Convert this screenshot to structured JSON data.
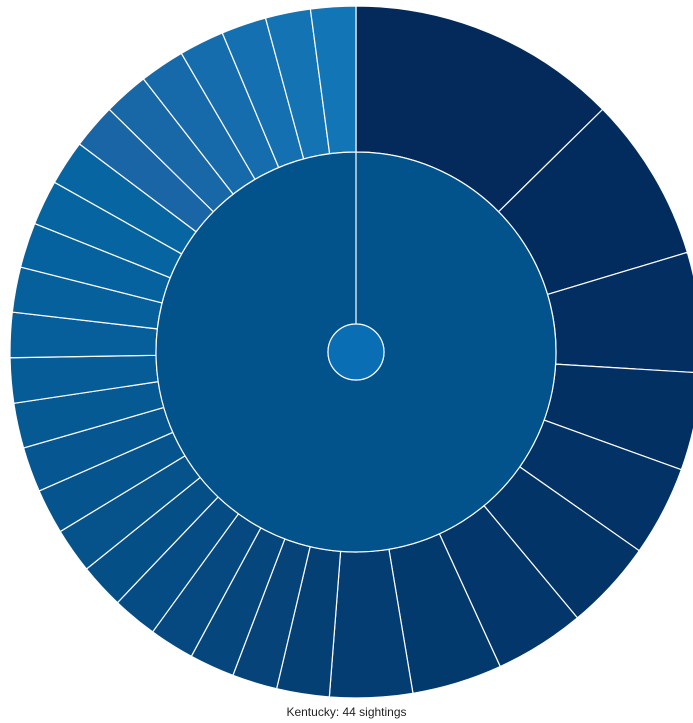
{
  "chart_data": {
    "type": "sunburst",
    "root": {
      "color": "#0a6eb4"
    },
    "ring1": [
      {
        "fraction": 1.0,
        "color": "#02528c"
      }
    ],
    "outer_ring": [
      {
        "share": 36,
        "color": "#032a5a"
      },
      {
        "share": 22,
        "color": "#032c5e"
      },
      {
        "share": 16,
        "color": "#032e61"
      },
      {
        "share": 13,
        "color": "#033063"
      },
      {
        "share": 12,
        "color": "#033266"
      },
      {
        "share": 12,
        "color": "#033468"
      },
      {
        "share": 12,
        "color": "#03366a"
      },
      {
        "share": 12,
        "color": "#033a6e"
      },
      {
        "share": 11,
        "color": "#033d72"
      },
      {
        "share": 7,
        "color": "#054075"
      },
      {
        "share": 6,
        "color": "#054378"
      },
      {
        "share": 6,
        "color": "#05467c"
      },
      {
        "share": 6,
        "color": "#054980"
      },
      {
        "share": 6,
        "color": "#054c84"
      },
      {
        "share": 6,
        "color": "#054f87"
      },
      {
        "share": 6,
        "color": "#06528b"
      },
      {
        "share": 6,
        "color": "#06548e"
      },
      {
        "share": 6,
        "color": "#065791"
      },
      {
        "share": 6,
        "color": "#065a94"
      },
      {
        "share": 6,
        "color": "#065c97"
      },
      {
        "share": 6,
        "color": "#065e9a"
      },
      {
        "share": 6,
        "color": "#06609c"
      },
      {
        "share": 6,
        "color": "#06629e"
      },
      {
        "share": 6,
        "color": "#0664a0"
      },
      {
        "share": 6,
        "color": "#0766a2"
      },
      {
        "share": 6,
        "color": "#1a65a6"
      },
      {
        "share": 6,
        "color": "#1868a8"
      },
      {
        "share": 6,
        "color": "#166aaa"
      },
      {
        "share": 6,
        "color": "#156dad"
      },
      {
        "share": 6,
        "color": "#1470b0"
      },
      {
        "share": 6,
        "color": "#1373b3"
      },
      {
        "share": 6,
        "color": "#1276b6"
      }
    ],
    "tooltip_text": "Kentucky: 44 sightings"
  }
}
